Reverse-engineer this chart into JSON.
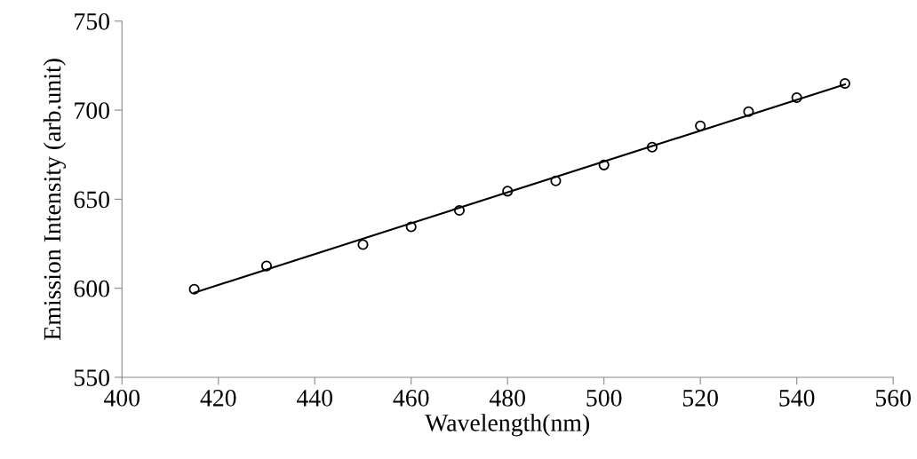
{
  "chart_data": {
    "type": "scatter",
    "xlabel": "Wavelength(nm)",
    "ylabel": "Emission Intensity (arb.unit)",
    "x": [
      415,
      430,
      450,
      460,
      470,
      480,
      490,
      500,
      510,
      520,
      530,
      540,
      550
    ],
    "series": [
      {
        "color": "#000000",
        "marker": "circle",
        "values": [
          599.5,
          612.5,
          624.5,
          634.5,
          643.7,
          654.5,
          660.3,
          669.2,
          679.2,
          691.2,
          699.2,
          707,
          715
        ]
      },
      {
        "type": "line",
        "color": "#000000",
        "marker": "none",
        "line_style": "solid",
        "x": [
          415,
          550
        ],
        "values": [
          597.5,
          714.5
        ]
      }
    ],
    "xlim": [
      400,
      560
    ],
    "xticks": [
      400,
      420,
      440,
      460,
      480,
      500,
      520,
      540,
      560
    ],
    "ylim": [
      550,
      750
    ],
    "yticks": [
      550,
      600,
      650,
      700,
      750
    ],
    "grid": false,
    "legend": false
  }
}
